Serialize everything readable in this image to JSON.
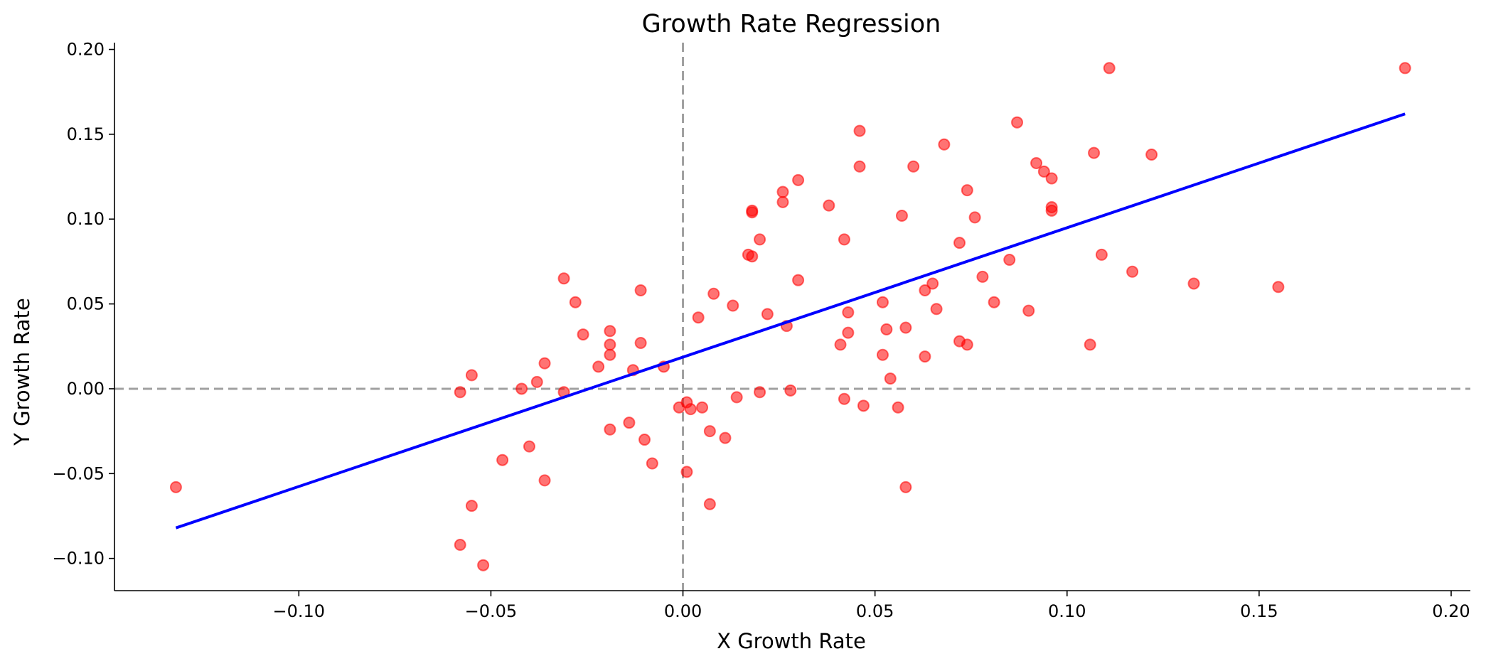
{
  "chart_data": {
    "type": "scatter",
    "title": "Growth Rate Regression",
    "xlabel": "X Growth Rate",
    "ylabel": "Y Growth Rate",
    "xlim": [
      -0.148,
      0.205
    ],
    "ylim": [
      -0.119,
      0.204
    ],
    "xticks": [
      -0.1,
      -0.05,
      0.0,
      0.05,
      0.1,
      0.15,
      0.2
    ],
    "xtick_labels": [
      "−0.10",
      "−0.05",
      "0.00",
      "0.05",
      "0.10",
      "0.15",
      "0.20"
    ],
    "yticks": [
      -0.1,
      -0.05,
      0.0,
      0.05,
      0.1,
      0.15,
      0.2
    ],
    "ytick_labels": [
      "−0.10",
      "−0.05",
      "0.00",
      "0.05",
      "0.10",
      "0.15",
      "0.20"
    ],
    "grid": false,
    "reference_lines": {
      "x": 0.0,
      "y": 0.0,
      "color": "#a0a0a0",
      "style": "dashed"
    },
    "colors": {
      "points": "#ff0000",
      "fit_line": "#0000ff"
    },
    "fit_line": {
      "x": [
        -0.132,
        0.188
      ],
      "y": [
        -0.082,
        0.162
      ]
    },
    "points": [
      [
        -0.132,
        -0.058
      ],
      [
        -0.058,
        -0.002
      ],
      [
        -0.055,
        0.008
      ],
      [
        -0.055,
        -0.069
      ],
      [
        -0.058,
        -0.092
      ],
      [
        -0.052,
        -0.104
      ],
      [
        -0.047,
        -0.042
      ],
      [
        -0.042,
        0.0
      ],
      [
        -0.04,
        -0.034
      ],
      [
        -0.038,
        0.004
      ],
      [
        -0.036,
        0.015
      ],
      [
        -0.036,
        -0.054
      ],
      [
        -0.031,
        0.065
      ],
      [
        -0.031,
        -0.002
      ],
      [
        -0.028,
        0.051
      ],
      [
        -0.026,
        0.032
      ],
      [
        -0.022,
        0.013
      ],
      [
        -0.019,
        0.034
      ],
      [
        -0.019,
        0.026
      ],
      [
        -0.019,
        0.02
      ],
      [
        -0.019,
        -0.024
      ],
      [
        -0.014,
        -0.02
      ],
      [
        -0.013,
        0.011
      ],
      [
        -0.011,
        0.058
      ],
      [
        -0.011,
        0.027
      ],
      [
        -0.01,
        -0.03
      ],
      [
        -0.008,
        -0.044
      ],
      [
        -0.005,
        0.013
      ],
      [
        -0.001,
        -0.011
      ],
      [
        0.001,
        -0.008
      ],
      [
        0.001,
        -0.049
      ],
      [
        0.002,
        -0.012
      ],
      [
        0.004,
        0.042
      ],
      [
        0.005,
        -0.011
      ],
      [
        0.007,
        -0.025
      ],
      [
        0.007,
        -0.068
      ],
      [
        0.008,
        0.056
      ],
      [
        0.011,
        -0.029
      ],
      [
        0.013,
        0.049
      ],
      [
        0.014,
        -0.005
      ],
      [
        0.017,
        0.079
      ],
      [
        0.018,
        0.078
      ],
      [
        0.018,
        0.105
      ],
      [
        0.018,
        0.104
      ],
      [
        0.02,
        -0.002
      ],
      [
        0.02,
        0.088
      ],
      [
        0.022,
        0.044
      ],
      [
        0.026,
        0.116
      ],
      [
        0.026,
        0.11
      ],
      [
        0.027,
        0.037
      ],
      [
        0.028,
        -0.001
      ],
      [
        0.03,
        0.123
      ],
      [
        0.03,
        0.064
      ],
      [
        0.038,
        0.108
      ],
      [
        0.041,
        0.026
      ],
      [
        0.042,
        0.088
      ],
      [
        0.042,
        -0.006
      ],
      [
        0.043,
        0.045
      ],
      [
        0.043,
        0.033
      ],
      [
        0.046,
        0.131
      ],
      [
        0.046,
        0.152
      ],
      [
        0.047,
        -0.01
      ],
      [
        0.052,
        0.02
      ],
      [
        0.052,
        0.051
      ],
      [
        0.053,
        0.035
      ],
      [
        0.054,
        0.006
      ],
      [
        0.056,
        -0.011
      ],
      [
        0.057,
        0.102
      ],
      [
        0.058,
        0.036
      ],
      [
        0.058,
        -0.058
      ],
      [
        0.06,
        0.131
      ],
      [
        0.063,
        0.058
      ],
      [
        0.063,
        0.019
      ],
      [
        0.065,
        0.062
      ],
      [
        0.066,
        0.047
      ],
      [
        0.068,
        0.144
      ],
      [
        0.072,
        0.086
      ],
      [
        0.072,
        0.028
      ],
      [
        0.074,
        0.117
      ],
      [
        0.074,
        0.026
      ],
      [
        0.076,
        0.101
      ],
      [
        0.078,
        0.066
      ],
      [
        0.081,
        0.051
      ],
      [
        0.085,
        0.076
      ],
      [
        0.087,
        0.157
      ],
      [
        0.09,
        0.046
      ],
      [
        0.092,
        0.133
      ],
      [
        0.094,
        0.128
      ],
      [
        0.096,
        0.124
      ],
      [
        0.096,
        0.105
      ],
      [
        0.096,
        0.107
      ],
      [
        0.106,
        0.026
      ],
      [
        0.107,
        0.139
      ],
      [
        0.109,
        0.079
      ],
      [
        0.111,
        0.189
      ],
      [
        0.117,
        0.069
      ],
      [
        0.122,
        0.138
      ],
      [
        0.133,
        0.062
      ],
      [
        0.155,
        0.06
      ],
      [
        0.188,
        0.189
      ]
    ]
  }
}
